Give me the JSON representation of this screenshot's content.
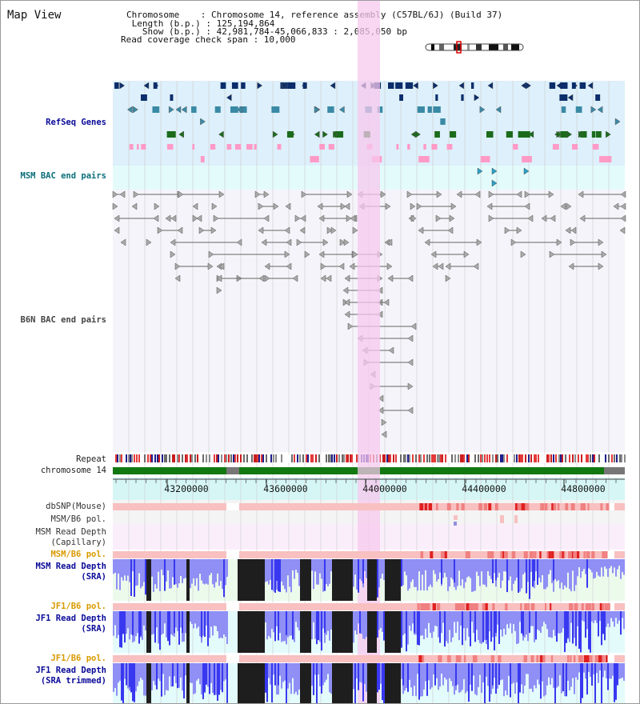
{
  "header": {
    "title": "Map View",
    "info_lines": [
      "Chromosome    : Chromosome 14, reference assembly (C57BL/6J) (Build 37)",
      " Length (b.p.) : 125,194,864",
      "   Show (b.p.) : 42,981,784-45,066,833 : 2,085,050 bp",
      "Read coverage check span : 10,000"
    ]
  },
  "tracks": {
    "refseq": "RefSeq Genes",
    "msm_bac": "MSM BAC end pairs",
    "b6n_bac": "B6N BAC end pairs",
    "repeat": "Repeat",
    "chromosome": "chromosome 14",
    "dbsnp": "dbSNP(Mouse)",
    "msm_b6_pol_1": "MSM/B6 pol.",
    "msm_read_depth_cap_1": "MSM Read Depth",
    "msm_read_depth_cap_2": "(Capillary)",
    "msm_b6_pol_2": "MSM/B6 pol.",
    "msm_read_depth_sra_1": "MSM Read Depth",
    "msm_read_depth_sra_2": "(SRA)",
    "jf1_b6_pol_1": "JF1/B6 pol.",
    "jf1_read_depth_sra_1": "JF1 Read Depth",
    "jf1_read_depth_sra_2": "(SRA)",
    "jf1_b6_pol_2": "JF1/B6 pol.",
    "jf1_read_depth_trim_1": "JF1 Read Depth",
    "jf1_read_depth_trim_2": "(SRA trimmed)"
  },
  "axis": {
    "ticks": [
      "43200000",
      "43600000",
      "44000000",
      "44400000",
      "44800000"
    ]
  },
  "colors": {
    "refseq_bg": "#ddf0fb",
    "bac_bg": "#e4fbfb",
    "highlight": "#f7c8ee",
    "chromosome": "#127812",
    "pol_orange": "#d99a00",
    "navy": "#0a0a99",
    "teal": "#0a6e7a",
    "depth_blue": "#3838f0",
    "depth_black": "#1e1e1e"
  }
}
